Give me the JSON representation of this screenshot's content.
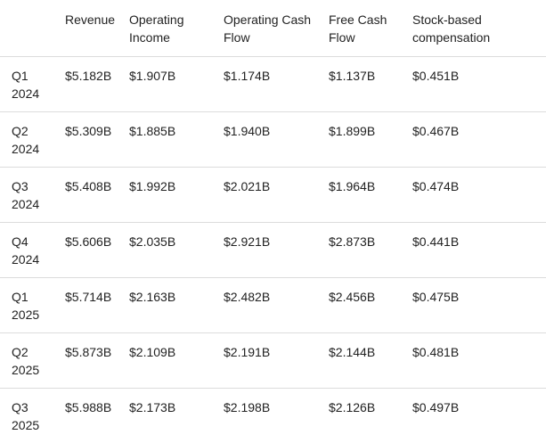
{
  "table": {
    "headers": [
      "Revenue",
      "Operating Income",
      "Operating Cash Flow",
      "Free Cash Flow",
      "Stock-based compensation"
    ],
    "rows": [
      {
        "label": "Q1 2024",
        "cells": [
          "$5.182B",
          "$1.907B",
          "$1.174B",
          "$1.137B",
          "$0.451B"
        ]
      },
      {
        "label": "Q2 2024",
        "cells": [
          "$5.309B",
          "$1.885B",
          "$1.940B",
          "$1.899B",
          "$0.467B"
        ]
      },
      {
        "label": "Q3 2024",
        "cells": [
          "$5.408B",
          "$1.992B",
          "$2.021B",
          "$1.964B",
          "$0.474B"
        ]
      },
      {
        "label": "Q4 2024",
        "cells": [
          "$5.606B",
          "$2.035B",
          "$2.921B",
          "$2.873B",
          "$0.441B"
        ]
      },
      {
        "label": "Q1 2025",
        "cells": [
          "$5.714B",
          "$2.163B",
          "$2.482B",
          "$2.456B",
          "$0.475B"
        ]
      },
      {
        "label": "Q2 2025",
        "cells": [
          "$5.873B",
          "$2.109B",
          "$2.191B",
          "$2.144B",
          "$0.481B"
        ]
      },
      {
        "label": "Q3 2025",
        "cells": [
          "$5.988B",
          "$2.173B",
          "$2.198B",
          "$2.126B",
          "$0.497B"
        ]
      }
    ]
  }
}
